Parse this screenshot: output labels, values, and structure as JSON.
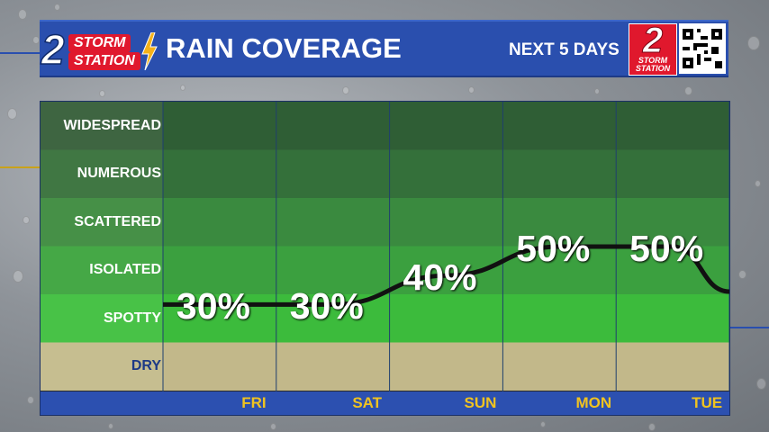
{
  "header": {
    "logo_number": "2",
    "logo_storm": "STORM",
    "logo_station": "STATION",
    "title": "RAIN COVERAGE",
    "subtitle": "NEXT 5 DAYS",
    "right_logo_number": "2",
    "right_logo_text": "STORM STATION"
  },
  "colors": {
    "header_bg": "#2a4fae",
    "label_color_dry": "#1d3a86",
    "tick_color": "#f0c320",
    "brand_red": "#e0182d"
  },
  "chart_data": {
    "type": "line",
    "title": "RAIN COVERAGE",
    "subtitle": "NEXT 5 DAYS",
    "y_categories": [
      "WIDESPREAD",
      "NUMEROUS",
      "SCATTERED",
      "ISOLATED",
      "SPOTTY",
      "DRY"
    ],
    "x": [
      "FRI",
      "SAT",
      "SUN",
      "MON",
      "TUE"
    ],
    "values": [
      30,
      30,
      40,
      50,
      50
    ],
    "labels": [
      "30%",
      "30%",
      "40%",
      "50%",
      "50%"
    ],
    "ylim": [
      0,
      100
    ],
    "grid": true
  }
}
